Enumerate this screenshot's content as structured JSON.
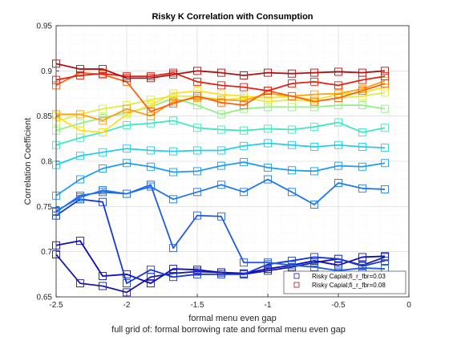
{
  "chart_data": {
    "type": "line",
    "title": "Risky K Correlation with Consumption",
    "xlabel": "formal menu even gap",
    "ylabel": "Correlation Coefficient",
    "caption": "full grid of: formal borrowing rate and formal menu even gap",
    "xlim": [
      -2.5,
      0
    ],
    "ylim": [
      0.65,
      0.95
    ],
    "xticks": [
      -2.5,
      -2,
      -1.5,
      -1,
      -0.5,
      0
    ],
    "xtick_labels": [
      "-2.5",
      "-2",
      "-1.5",
      "-1",
      "-0.5",
      "0"
    ],
    "yticks": [
      0.65,
      0.7,
      0.75,
      0.8,
      0.85,
      0.9,
      0.95
    ],
    "ytick_labels": [
      "0.65",
      "0.7",
      "0.75",
      "0.8",
      "0.85",
      "0.9",
      "0.95"
    ],
    "grid": true,
    "marker": "square",
    "x": [
      -2.5,
      -2.33,
      -2.17,
      -2.0,
      -1.83,
      -1.67,
      -1.5,
      -1.33,
      -1.17,
      -1.0,
      -0.83,
      -0.67,
      -0.5,
      -0.33,
      -0.17
    ],
    "legend_position": "bottom-right",
    "legend": [
      {
        "label": "Risky Capial;fi_r_fbr=0.03",
        "color": "#1a1aa0"
      },
      {
        "label": "Risky Capial;fi_r_fbr=0.08",
        "color": "#b01010"
      }
    ],
    "series": [
      {
        "color": "#1a1aa0",
        "values": [
          0.697,
          0.665,
          0.662,
          0.655,
          0.672,
          0.676,
          0.678,
          0.677,
          0.675,
          0.679,
          0.683,
          0.688,
          0.692,
          0.685,
          0.694
        ]
      },
      {
        "color": "#0d0dc0",
        "values": [
          0.707,
          0.712,
          0.673,
          0.675,
          0.665,
          0.681,
          0.68,
          0.677,
          0.676,
          0.681,
          0.685,
          0.69,
          0.685,
          0.694,
          0.695
        ]
      },
      {
        "color": "#1538d6",
        "values": [
          0.74,
          0.758,
          0.755,
          0.665,
          0.68,
          0.672,
          0.675,
          0.675,
          0.675,
          0.686,
          0.69,
          0.694,
          0.692,
          0.684,
          0.69
        ]
      },
      {
        "color": "#1e5ce4",
        "values": [
          0.744,
          0.762,
          0.766,
          0.764,
          0.774,
          0.704,
          0.74,
          0.739,
          0.688,
          0.688,
          0.685,
          0.683,
          0.679,
          0.682,
          0.681
        ]
      },
      {
        "color": "#1e78f0",
        "values": [
          0.745,
          0.76,
          0.768,
          0.764,
          0.772,
          0.758,
          0.766,
          0.774,
          0.766,
          0.78,
          0.766,
          0.752,
          0.776,
          0.77,
          0.769
        ]
      },
      {
        "color": "#1c9cf2",
        "values": [
          0.762,
          0.78,
          0.792,
          0.798,
          0.794,
          0.788,
          0.789,
          0.795,
          0.799,
          0.793,
          0.79,
          0.789,
          0.795,
          0.794,
          0.798
        ]
      },
      {
        "color": "#20d0e8",
        "values": [
          0.796,
          0.806,
          0.81,
          0.814,
          0.812,
          0.811,
          0.812,
          0.812,
          0.817,
          0.82,
          0.818,
          0.816,
          0.818,
          0.816,
          0.815
        ]
      },
      {
        "color": "#40e8c0",
        "values": [
          0.818,
          0.826,
          0.832,
          0.84,
          0.842,
          0.845,
          0.837,
          0.835,
          0.834,
          0.836,
          0.835,
          0.838,
          0.843,
          0.832,
          0.837
        ]
      },
      {
        "color": "#90f080",
        "values": [
          0.834,
          0.842,
          0.848,
          0.854,
          0.86,
          0.87,
          0.862,
          0.852,
          0.858,
          0.86,
          0.86,
          0.86,
          0.862,
          0.862,
          0.858
        ]
      },
      {
        "color": "#d8f040",
        "values": [
          0.844,
          0.852,
          0.858,
          0.862,
          0.868,
          0.872,
          0.872,
          0.868,
          0.87,
          0.866,
          0.868,
          0.866,
          0.87,
          0.872,
          0.876
        ]
      },
      {
        "color": "#ffe020",
        "values": [
          0.85,
          0.834,
          0.832,
          0.852,
          0.862,
          0.875,
          0.878,
          0.874,
          0.872,
          0.87,
          0.872,
          0.868,
          0.874,
          0.876,
          0.882
        ]
      },
      {
        "color": "#ffa010",
        "values": [
          0.852,
          0.852,
          0.845,
          0.858,
          0.85,
          0.866,
          0.87,
          0.868,
          0.867,
          0.875,
          0.872,
          0.874,
          0.875,
          0.88,
          0.889
        ]
      },
      {
        "color": "#ff6010",
        "values": [
          0.884,
          0.898,
          0.896,
          0.888,
          0.855,
          0.864,
          0.872,
          0.865,
          0.862,
          0.878,
          0.872,
          0.866,
          0.87,
          0.878,
          0.886
        ]
      },
      {
        "color": "#e82010",
        "values": [
          0.89,
          0.895,
          0.897,
          0.894,
          0.894,
          0.898,
          0.888,
          0.884,
          0.882,
          0.878,
          0.886,
          0.888,
          0.884,
          0.89,
          0.894
        ]
      },
      {
        "color": "#b01010",
        "values": [
          0.908,
          0.902,
          0.902,
          0.892,
          0.892,
          0.896,
          0.9,
          0.898,
          0.895,
          0.898,
          0.897,
          0.898,
          0.899,
          0.898,
          0.9
        ]
      }
    ]
  }
}
